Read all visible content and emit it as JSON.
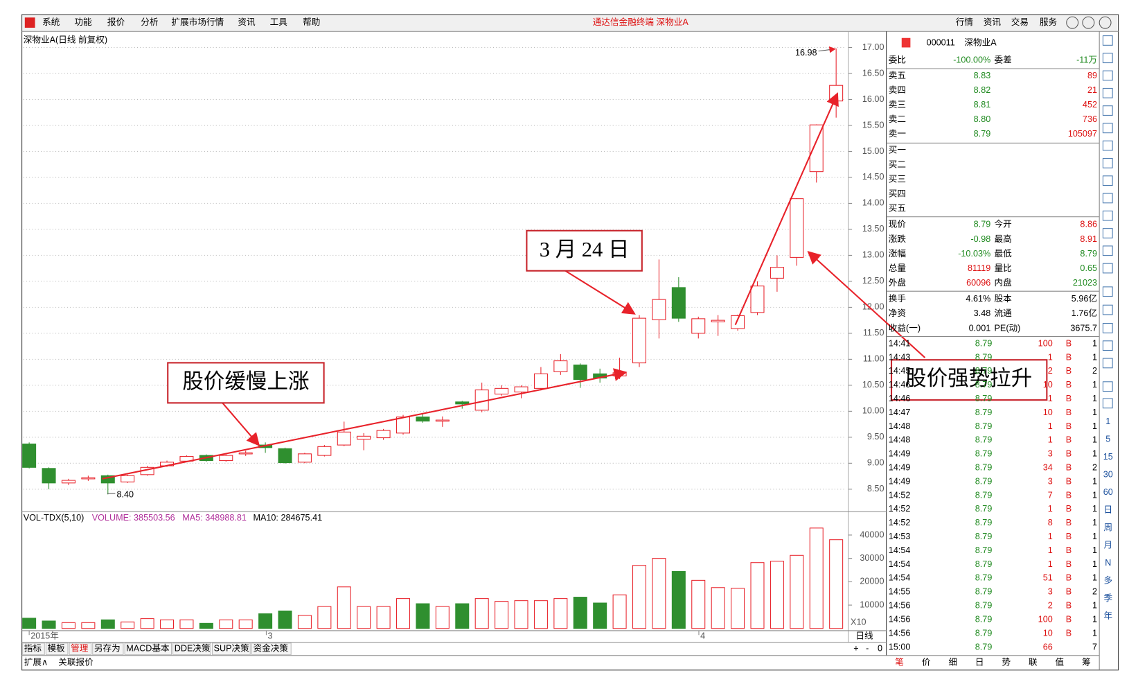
{
  "menu": {
    "items": [
      "系统",
      "功能",
      "报价",
      "分析",
      "扩展市场行情",
      "资讯",
      "工具",
      "帮助"
    ],
    "center_title": "通达信金融终端  深物业A",
    "buttons": [
      "行情",
      "资讯",
      "交易",
      "服务"
    ]
  },
  "chart": {
    "title": "深物业A(日线 前复权)",
    "high_marker": "16.98",
    "low_marker": "8.40",
    "dates": [
      "2015年",
      "3",
      "4"
    ],
    "price_axis": {
      "ticks": [
        {
          "value": 8.5,
          "label": "8.50"
        },
        {
          "value": 9,
          "label": "9.00"
        },
        {
          "value": 9.5,
          "label": "9.50"
        },
        {
          "value": 10,
          "label": "10.00"
        },
        {
          "value": 10.5,
          "label": "10.50"
        },
        {
          "value": 11,
          "label": "11.00"
        },
        {
          "value": 11.5,
          "label": "11.50"
        },
        {
          "value": 12,
          "label": "12.00"
        },
        {
          "value": 12.5,
          "label": "12.50"
        },
        {
          "value": 13,
          "label": "13.00"
        },
        {
          "value": 13.5,
          "label": "13.50"
        },
        {
          "value": 14,
          "label": "14.00"
        },
        {
          "value": 14.5,
          "label": "14.50"
        },
        {
          "value": 15,
          "label": "15.00"
        },
        {
          "value": 15.5,
          "label": "15.50"
        },
        {
          "value": 16,
          "label": "16.00"
        },
        {
          "value": 16.5,
          "label": "16.50"
        },
        {
          "value": 17,
          "label": "17.00"
        }
      ]
    },
    "kline": {
      "open": [
        9.37,
        8.9,
        8.62,
        8.7,
        8.76,
        8.64,
        8.78,
        8.95,
        9.04,
        9.15,
        9.05,
        9.18,
        9.35,
        9.28,
        9.02,
        9.15,
        9.35,
        9.46,
        9.49,
        9.58,
        9.89,
        9.81,
        10.18,
        10.02,
        10.33,
        10.37,
        10.44,
        10.76,
        10.89,
        10.72,
        10.68,
        10.93,
        11.76,
        12.38,
        11.5,
        11.72,
        11.59,
        11.9,
        12.56,
        12.96,
        14.61,
        15.97
      ],
      "close": [
        8.92,
        8.62,
        8.67,
        8.72,
        8.62,
        8.76,
        8.92,
        9.02,
        9.13,
        9.05,
        9.15,
        9.2,
        9.3,
        9.01,
        9.18,
        9.32,
        9.6,
        9.52,
        9.63,
        9.89,
        9.81,
        9.83,
        10.14,
        10.41,
        10.44,
        10.47,
        10.72,
        10.97,
        10.61,
        10.64,
        10.74,
        11.79,
        12.15,
        11.79,
        11.78,
        11.75,
        11.84,
        12.41,
        12.77,
        14.09,
        15.51,
        16.27
      ],
      "high": [
        9.4,
        8.92,
        8.7,
        8.76,
        8.78,
        8.78,
        8.95,
        9.05,
        9.15,
        9.17,
        9.17,
        9.24,
        9.4,
        9.3,
        9.2,
        9.35,
        9.8,
        9.58,
        9.66,
        9.93,
        9.95,
        9.9,
        10.2,
        10.55,
        10.5,
        10.5,
        10.85,
        11.1,
        10.92,
        10.82,
        11.03,
        11.85,
        12.92,
        12.58,
        11.82,
        11.85,
        11.86,
        12.5,
        13.0,
        14.1,
        15.52,
        16.98
      ],
      "low": [
        8.9,
        8.5,
        8.58,
        8.66,
        8.4,
        8.62,
        8.76,
        8.93,
        9.03,
        9.03,
        9.03,
        9.14,
        9.2,
        8.99,
        9.0,
        9.13,
        9.33,
        9.25,
        9.45,
        9.55,
        9.78,
        9.7,
        10.05,
        9.98,
        10.3,
        10.25,
        10.4,
        10.7,
        10.45,
        10.55,
        10.62,
        10.85,
        11.4,
        11.72,
        11.4,
        11.45,
        11.55,
        11.85,
        12.3,
        12.8,
        14.4,
        15.65
      ],
      "volume": [
        4400,
        3200,
        2500,
        2500,
        3700,
        2800,
        4200,
        3700,
        3700,
        2200,
        3700,
        3700,
        6300,
        7500,
        5600,
        9400,
        17800,
        9400,
        9400,
        12800,
        10600,
        9400,
        10600,
        12800,
        11600,
        11900,
        11900,
        12800,
        13400,
        10900,
        14400,
        27000,
        30000,
        24400,
        20600,
        17500,
        17200,
        28200,
        28800,
        31300,
        43000,
        38000
      ]
    },
    "annotations": [
      "股价缓慢上涨",
      "3 月 24 日",
      "股价强势拉升"
    ],
    "volume_panel": {
      "name": "VOL-TDX(5,10)",
      "volume": "VOLUME: 385503.56",
      "ma5": "MA5: 348988.81",
      "ma10": "MA10: 284675.41",
      "ticks": [
        10000,
        20000,
        30000,
        40000
      ],
      "unit": "X10"
    },
    "tabs": [
      "指标",
      "模板",
      "管理",
      "另存为",
      "MACD基本",
      "DDE决策",
      "SUP决策",
      "资金决策"
    ],
    "period": "日线",
    "zoom": [
      "+",
      "-",
      "0"
    ],
    "tabs2": [
      "扩展∧",
      "关联报价"
    ]
  },
  "quote": {
    "code": "000011",
    "name": "深物业A",
    "ratio": [
      "委比",
      "-100.00%",
      "委差",
      "-11万"
    ],
    "sells": [
      [
        "卖五",
        "8.83",
        "89"
      ],
      [
        "卖四",
        "8.82",
        "21"
      ],
      [
        "卖三",
        "8.81",
        "452"
      ],
      [
        "卖二",
        "8.80",
        "736"
      ],
      [
        "卖一",
        "8.79",
        "105097"
      ]
    ],
    "buys": [
      "买一",
      "买二",
      "买三",
      "买四",
      "买五"
    ],
    "stats": [
      [
        "现价",
        "8.79",
        "今开",
        "8.86"
      ],
      [
        "涨跌",
        "-0.98",
        "最高",
        "8.91"
      ],
      [
        "涨幅",
        "-10.03%",
        "最低",
        "8.79"
      ],
      [
        "总量",
        "81119",
        "量比",
        "0.65"
      ],
      [
        "外盘",
        "60096",
        "内盘",
        "21023"
      ],
      [
        "换手",
        "4.61%",
        "股本",
        "5.96亿"
      ],
      [
        "净资",
        "3.48",
        "流通",
        "1.76亿"
      ],
      [
        "收益(一)",
        "0.001",
        "PE(动)",
        "3675.7"
      ]
    ],
    "trades": [
      [
        "14:41",
        "8.79",
        "100",
        "B",
        "1"
      ],
      [
        "14:43",
        "8.79",
        "1",
        "B",
        "1"
      ],
      [
        "14:45",
        "8.79",
        "2",
        "B",
        "2"
      ],
      [
        "14:46",
        "8.79",
        "10",
        "B",
        "1"
      ],
      [
        "14:46",
        "8.79",
        "1",
        "B",
        "1"
      ],
      [
        "14:47",
        "8.79",
        "10",
        "B",
        "1"
      ],
      [
        "14:48",
        "8.79",
        "1",
        "B",
        "1"
      ],
      [
        "14:48",
        "8.79",
        "1",
        "B",
        "1"
      ],
      [
        "14:49",
        "8.79",
        "3",
        "B",
        "1"
      ],
      [
        "14:49",
        "8.79",
        "34",
        "B",
        "2"
      ],
      [
        "14:49",
        "8.79",
        "3",
        "B",
        "1"
      ],
      [
        "14:52",
        "8.79",
        "7",
        "B",
        "1"
      ],
      [
        "14:52",
        "8.79",
        "1",
        "B",
        "1"
      ],
      [
        "14:52",
        "8.79",
        "8",
        "B",
        "1"
      ],
      [
        "14:53",
        "8.79",
        "1",
        "B",
        "1"
      ],
      [
        "14:54",
        "8.79",
        "1",
        "B",
        "1"
      ],
      [
        "14:54",
        "8.79",
        "1",
        "B",
        "1"
      ],
      [
        "14:54",
        "8.79",
        "51",
        "B",
        "1"
      ],
      [
        "14:55",
        "8.79",
        "3",
        "B",
        "2"
      ],
      [
        "14:56",
        "8.79",
        "2",
        "B",
        "1"
      ],
      [
        "14:56",
        "8.79",
        "100",
        "B",
        "1"
      ],
      [
        "14:56",
        "8.79",
        "10",
        "B",
        "1"
      ],
      [
        "15:00",
        "8.79",
        "66",
        "7"
      ]
    ],
    "bottom_tabs": [
      "笔",
      "价",
      "细",
      "日",
      "势",
      "联",
      "值",
      "筹"
    ],
    "periods": [
      "1",
      "5",
      "15",
      "30",
      "60",
      "日",
      "周",
      "月",
      "N",
      "多",
      "季",
      "年"
    ]
  }
}
